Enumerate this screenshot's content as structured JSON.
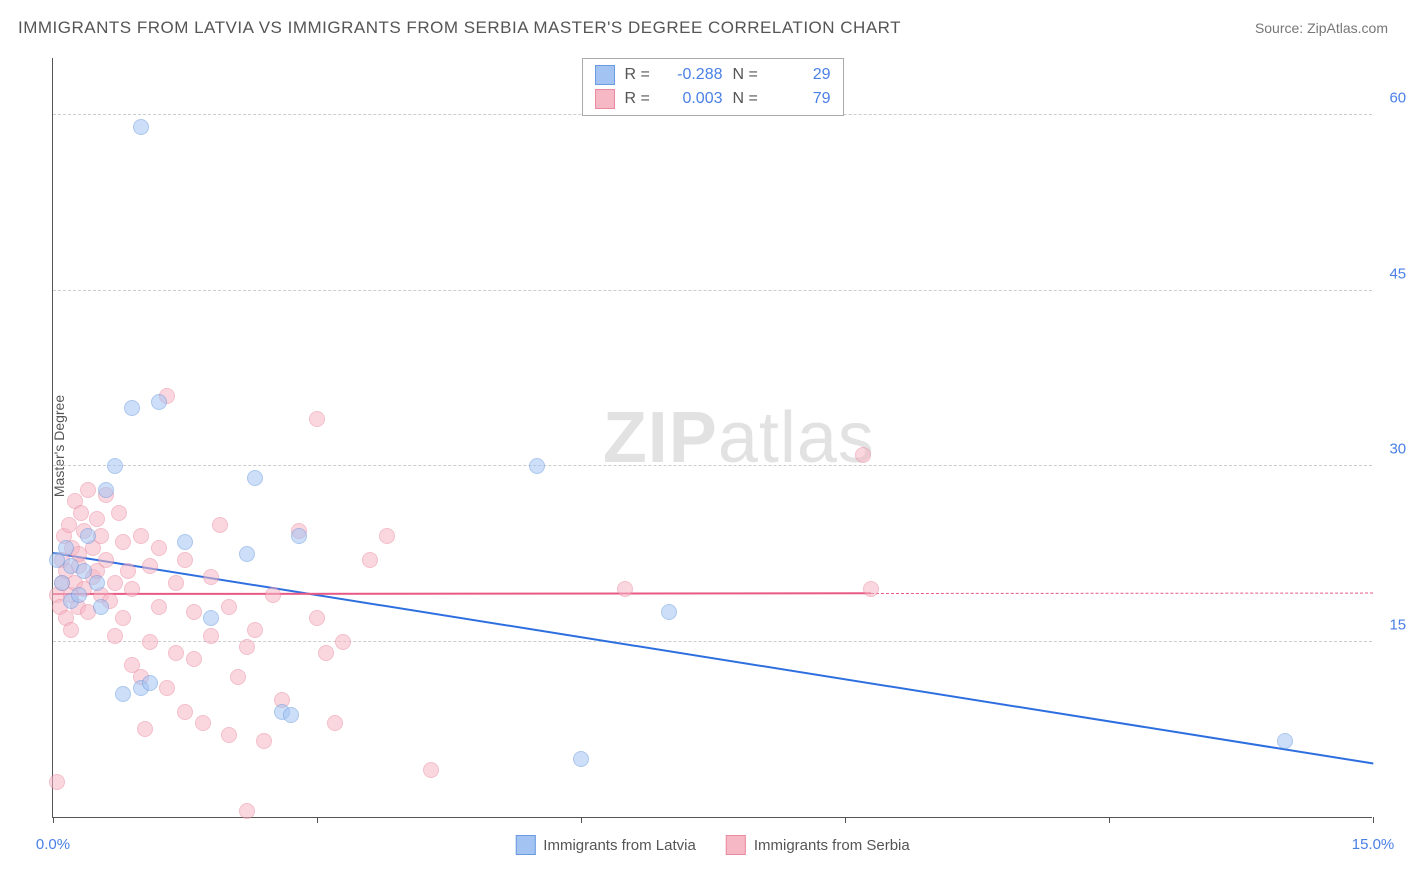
{
  "title": "IMMIGRANTS FROM LATVIA VS IMMIGRANTS FROM SERBIA MASTER'S DEGREE CORRELATION CHART",
  "source": "Source: ZipAtlas.com",
  "watermark_bold": "ZIP",
  "watermark_rest": "atlas",
  "y_axis_label": "Master's Degree",
  "chart": {
    "type": "scatter",
    "xlim": [
      0,
      15
    ],
    "ylim": [
      0,
      65
    ],
    "x_ticks": [
      0,
      3,
      6,
      9,
      12,
      15
    ],
    "x_tick_labels": [
      "0.0%",
      "",
      "",
      "",
      "",
      "15.0%"
    ],
    "y_gridlines": [
      15,
      30,
      45,
      60
    ],
    "y_tick_labels": [
      "15.0%",
      "30.0%",
      "45.0%",
      "60.0%"
    ],
    "background_color": "#ffffff",
    "grid_color": "#cccccc",
    "axis_color": "#555555",
    "tick_label_color": "#4a80e6",
    "marker_radius": 8,
    "marker_opacity": 0.55,
    "series": [
      {
        "name": "Immigrants from Latvia",
        "fill_color": "#a3c4f3",
        "stroke_color": "#6a9be0",
        "trend_color": "#2e6fe0",
        "r_value": "-0.288",
        "n_value": "29",
        "trend": {
          "x1": 0,
          "y1": 22.5,
          "x2": 15,
          "y2": 4.5,
          "solid_until_x": 15
        },
        "points": [
          [
            0.05,
            22
          ],
          [
            0.1,
            20
          ],
          [
            0.15,
            23
          ],
          [
            0.2,
            21.5
          ],
          [
            0.2,
            18.5
          ],
          [
            0.3,
            19
          ],
          [
            0.35,
            21
          ],
          [
            0.4,
            24
          ],
          [
            0.5,
            20
          ],
          [
            0.55,
            18
          ],
          [
            0.6,
            28
          ],
          [
            0.7,
            30
          ],
          [
            0.8,
            10.5
          ],
          [
            0.9,
            35
          ],
          [
            1.0,
            11
          ],
          [
            1.0,
            59
          ],
          [
            1.1,
            11.5
          ],
          [
            1.2,
            35.5
          ],
          [
            1.5,
            23.5
          ],
          [
            1.8,
            17
          ],
          [
            2.2,
            22.5
          ],
          [
            2.3,
            29
          ],
          [
            2.6,
            9
          ],
          [
            2.7,
            8.7
          ],
          [
            2.8,
            24
          ],
          [
            5.5,
            30
          ],
          [
            6.0,
            5
          ],
          [
            7.0,
            17.5
          ],
          [
            14.0,
            6.5
          ]
        ]
      },
      {
        "name": "Immigrants from Serbia",
        "fill_color": "#f6b8c5",
        "stroke_color": "#ea8aa0",
        "trend_color": "#e85a85",
        "r_value": "0.003",
        "n_value": "79",
        "trend": {
          "x1": 0,
          "y1": 19,
          "x2": 15,
          "y2": 19.1,
          "solid_until_x": 9.3
        },
        "points": [
          [
            0.05,
            3
          ],
          [
            0.05,
            19
          ],
          [
            0.08,
            18
          ],
          [
            0.1,
            20
          ],
          [
            0.1,
            22
          ],
          [
            0.12,
            24
          ],
          [
            0.15,
            21
          ],
          [
            0.15,
            17
          ],
          [
            0.18,
            25
          ],
          [
            0.2,
            19
          ],
          [
            0.2,
            16
          ],
          [
            0.22,
            23
          ],
          [
            0.25,
            20
          ],
          [
            0.25,
            27
          ],
          [
            0.28,
            18
          ],
          [
            0.3,
            21.5
          ],
          [
            0.3,
            22.5
          ],
          [
            0.32,
            26
          ],
          [
            0.35,
            19.5
          ],
          [
            0.35,
            24.5
          ],
          [
            0.4,
            28
          ],
          [
            0.4,
            17.5
          ],
          [
            0.45,
            20.5
          ],
          [
            0.45,
            23
          ],
          [
            0.5,
            25.5
          ],
          [
            0.5,
            21
          ],
          [
            0.55,
            24
          ],
          [
            0.55,
            19
          ],
          [
            0.6,
            27.5
          ],
          [
            0.6,
            22
          ],
          [
            0.65,
            18.5
          ],
          [
            0.7,
            20
          ],
          [
            0.7,
            15.5
          ],
          [
            0.75,
            26
          ],
          [
            0.8,
            17
          ],
          [
            0.8,
            23.5
          ],
          [
            0.85,
            21
          ],
          [
            0.9,
            13
          ],
          [
            0.9,
            19.5
          ],
          [
            1.0,
            24
          ],
          [
            1.0,
            12
          ],
          [
            1.05,
            7.5
          ],
          [
            1.1,
            21.5
          ],
          [
            1.1,
            15
          ],
          [
            1.2,
            18
          ],
          [
            1.2,
            23
          ],
          [
            1.3,
            11
          ],
          [
            1.3,
            36
          ],
          [
            1.4,
            20
          ],
          [
            1.4,
            14
          ],
          [
            1.5,
            9
          ],
          [
            1.5,
            22
          ],
          [
            1.6,
            17.5
          ],
          [
            1.6,
            13.5
          ],
          [
            1.7,
            8
          ],
          [
            1.8,
            15.5
          ],
          [
            1.8,
            20.5
          ],
          [
            1.9,
            25
          ],
          [
            2.0,
            7
          ],
          [
            2.0,
            18
          ],
          [
            2.1,
            12
          ],
          [
            2.2,
            14.5
          ],
          [
            2.2,
            0.5
          ],
          [
            2.3,
            16
          ],
          [
            2.4,
            6.5
          ],
          [
            2.5,
            19
          ],
          [
            2.6,
            10
          ],
          [
            2.8,
            24.5
          ],
          [
            3.0,
            34
          ],
          [
            3.0,
            17
          ],
          [
            3.1,
            14
          ],
          [
            3.2,
            8
          ],
          [
            3.3,
            15
          ],
          [
            3.6,
            22
          ],
          [
            3.8,
            24
          ],
          [
            4.3,
            4
          ],
          [
            6.5,
            19.5
          ],
          [
            9.2,
            31
          ],
          [
            9.3,
            19.5
          ]
        ]
      }
    ]
  },
  "legend_top": {
    "r_label": "R =",
    "n_label": "N ="
  }
}
